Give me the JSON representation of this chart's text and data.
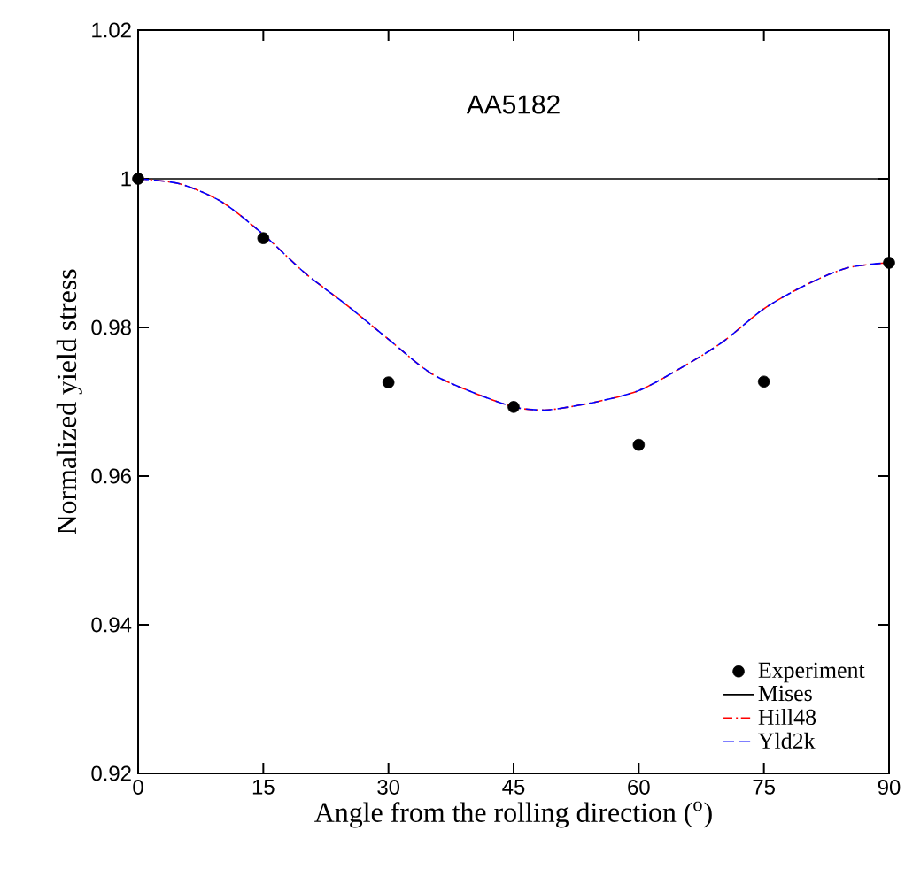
{
  "chart_data": {
    "type": "line",
    "xlabel": "Angle from the rolling direction ($^{o}$)",
    "ylabel": "Normalized yield stress",
    "annotations": [
      "AA5182"
    ],
    "xlim": [
      0,
      90
    ],
    "xticks": [
      0,
      15,
      30,
      45,
      60,
      75,
      90
    ],
    "ylim": [
      0.92,
      1.02
    ],
    "yticks": [
      {
        "value": 0.92,
        "label": "0.92"
      },
      {
        "value": 0.94,
        "label": "0.94"
      },
      {
        "value": 0.96,
        "label": "0.96"
      },
      {
        "value": 0.98,
        "label": "0.98"
      },
      {
        "value": 1,
        "label": "1"
      },
      {
        "value": 1.02,
        "label": "1.02"
      }
    ],
    "grid": false,
    "legend": "bottom right",
    "series": [
      {
        "name": "Experiment",
        "type": "scatter",
        "color": "#000000",
        "x": [
          0,
          15,
          30,
          45,
          60,
          75,
          90
        ],
        "values": [
          1.0,
          0.992,
          0.9726,
          0.9693,
          0.9642,
          0.9727,
          0.9887
        ]
      },
      {
        "name": "Mises",
        "line_style": "solid",
        "color": "#000000",
        "x": [
          0,
          90
        ],
        "values": [
          1.0,
          1.0
        ]
      },
      {
        "name": "Hill48",
        "line_style": "dashdot",
        "color": "#ff0000",
        "x": [
          0,
          5,
          10,
          15,
          20,
          25,
          30,
          35,
          40,
          45,
          48,
          50,
          55,
          60,
          65,
          70,
          75,
          80,
          85,
          90
        ],
        "values": [
          1.0,
          0.9993,
          0.9969,
          0.9925,
          0.9873,
          0.983,
          0.9784,
          0.9739,
          0.9713,
          0.9693,
          0.9689,
          0.969,
          0.97,
          0.9715,
          0.9745,
          0.978,
          0.9825,
          0.9857,
          0.988,
          0.9887
        ]
      },
      {
        "name": "Yld2k",
        "line_style": "dashed",
        "color": "#0000ff",
        "x": [
          0,
          5,
          10,
          15,
          20,
          25,
          30,
          35,
          40,
          45,
          48,
          50,
          55,
          60,
          65,
          70,
          75,
          80,
          85,
          90
        ],
        "values": [
          1.0,
          0.9993,
          0.9969,
          0.9925,
          0.9873,
          0.983,
          0.9784,
          0.9739,
          0.9713,
          0.9693,
          0.9689,
          0.969,
          0.97,
          0.9715,
          0.9745,
          0.978,
          0.9825,
          0.9857,
          0.988,
          0.9887
        ]
      }
    ]
  }
}
